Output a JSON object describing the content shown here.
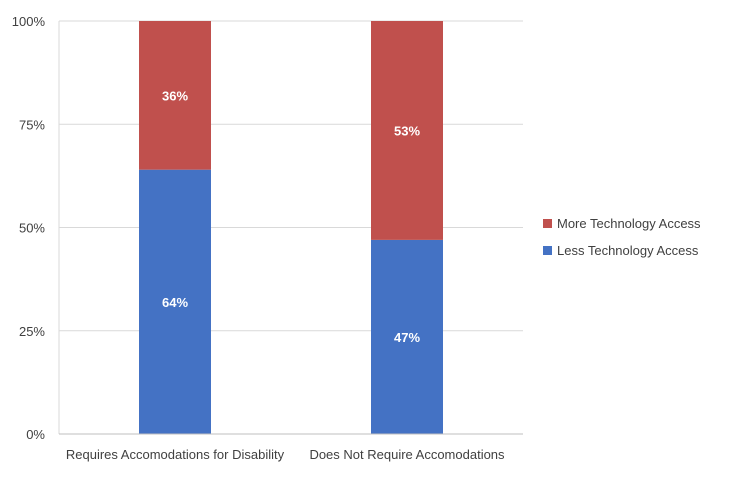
{
  "chart_data": {
    "type": "bar",
    "stacked": true,
    "percent_stacked": true,
    "categories": [
      "Requires Accomodations for Disability",
      "Does Not Require Accomodations"
    ],
    "series": [
      {
        "name": "Less Technology Access",
        "values": [
          64,
          47
        ],
        "labels": [
          "64%",
          "47%"
        ],
        "color": "#4472C4"
      },
      {
        "name": "More Technology Access",
        "values": [
          36,
          53
        ],
        "labels": [
          "36%",
          "53%"
        ],
        "color": "#C0504D"
      }
    ],
    "y_ticks": [
      {
        "value": 0,
        "label": "0%"
      },
      {
        "value": 25,
        "label": "25%"
      },
      {
        "value": 50,
        "label": "50%"
      },
      {
        "value": 75,
        "label": "75%"
      },
      {
        "value": 100,
        "label": "100%"
      }
    ],
    "ylim": [
      0,
      100
    ],
    "title": "",
    "xlabel": "",
    "ylabel": "",
    "grid": true,
    "legend": {
      "placement": "right",
      "order": [
        "More Technology Access",
        "Less Technology Access"
      ]
    },
    "gridline_color": "#d9d9d9",
    "axis_color": "#bfbfbf"
  }
}
